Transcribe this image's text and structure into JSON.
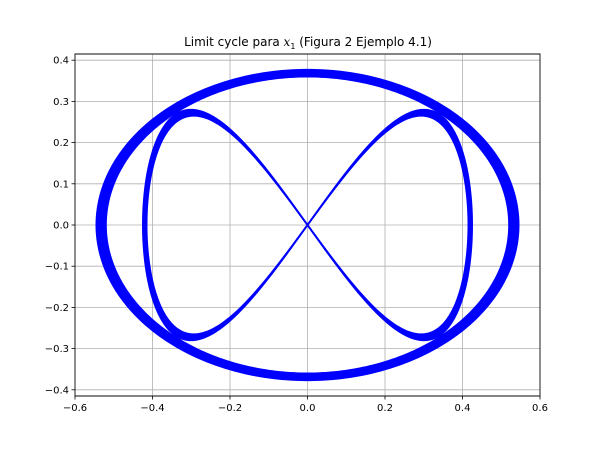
{
  "chart_data": {
    "type": "line",
    "title": "Limit cycle para ",
    "title_var": "x",
    "title_sub": "1",
    "title_rest": " (Figura 2 Ejemplo 4.1)",
    "xlabel": "",
    "ylabel": "",
    "xlim": [
      -0.6,
      0.6
    ],
    "ylim": [
      -0.415,
      0.415
    ],
    "xticks": [
      {
        "value": -0.6,
        "label": "−0.6"
      },
      {
        "value": -0.4,
        "label": "−0.4"
      },
      {
        "value": -0.2,
        "label": "−0.2"
      },
      {
        "value": 0.0,
        "label": "0.0"
      },
      {
        "value": 0.2,
        "label": "0.2"
      },
      {
        "value": 0.4,
        "label": "0.4"
      },
      {
        "value": 0.6,
        "label": "0.6"
      }
    ],
    "yticks": [
      {
        "value": -0.4,
        "label": "−0.4"
      },
      {
        "value": -0.3,
        "label": "−0.3"
      },
      {
        "value": -0.2,
        "label": "−0.2"
      },
      {
        "value": -0.1,
        "label": "−0.1"
      },
      {
        "value": 0.0,
        "label": "0.0"
      },
      {
        "value": 0.1,
        "label": "0.1"
      },
      {
        "value": 0.2,
        "label": "0.2"
      },
      {
        "value": 0.3,
        "label": "0.3"
      },
      {
        "value": 0.4,
        "label": "0.4"
      }
    ],
    "grid": true,
    "line_color": "#0000ff",
    "series": [
      {
        "trajectory_band": {
          "x_amplitude": [
            0.52,
            0.545
          ],
          "y_amplitude": [
            0.36,
            0.377
          ],
          "harmonic_ratio": 1
        },
        "inner_loop": {
          "x_amplitude": [
            0.415,
            0.425
          ],
          "y_amplitude": [
            0.265,
            0.28
          ],
          "harmonic_ratio": 2
        }
      }
    ]
  }
}
